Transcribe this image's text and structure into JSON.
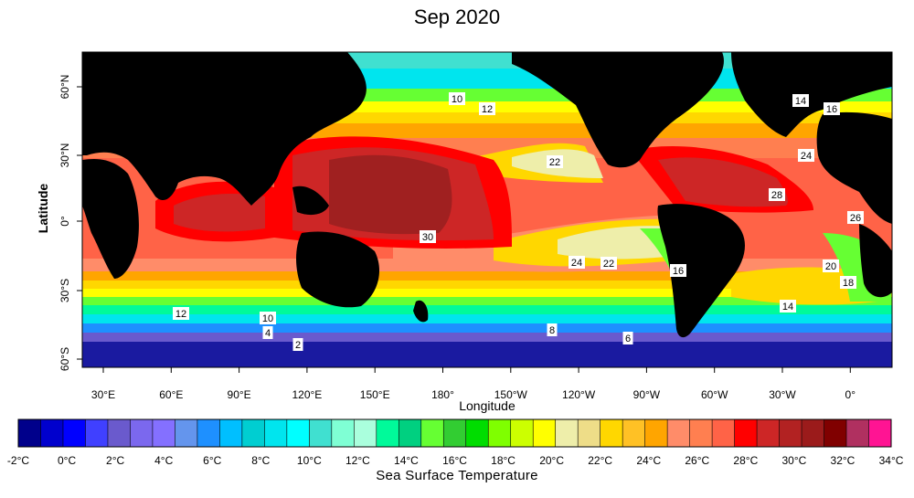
{
  "title": "Sep 2020",
  "map": {
    "y_axis_title": "Latitude",
    "x_axis_title": "Longitude",
    "lat_ticks": [
      "60°N",
      "30°N",
      "0°",
      "30°S",
      "60°S"
    ],
    "lon_ticks": [
      "30°E",
      "60°E",
      "90°E",
      "120°E",
      "150°E",
      "180°",
      "150°W",
      "120°W",
      "90°W",
      "60°W",
      "30°W",
      "0°"
    ],
    "contour_labels": [
      "10",
      "12",
      "14",
      "16",
      "24",
      "22",
      "28",
      "26",
      "30",
      "24",
      "22",
      "16",
      "20",
      "18",
      "14",
      "12",
      "10",
      "4",
      "2",
      "8",
      "6"
    ],
    "colors": {
      "land": "#000000",
      "warm_core": "#a02020",
      "hot": "#ff1a1a",
      "coral": "#ff7a5c",
      "polar": "#1a1aa0"
    }
  },
  "colorbar": {
    "title": "Sea Surface Temperature",
    "tick_labels": [
      "-2°C",
      "0°C",
      "2°C",
      "4°C",
      "6°C",
      "8°C",
      "10°C",
      "12°C",
      "14°C",
      "16°C",
      "18°C",
      "20°C",
      "22°C",
      "24°C",
      "26°C",
      "28°C",
      "30°C",
      "32°C",
      "34°C"
    ],
    "colors": [
      "#00008b",
      "#0000cd",
      "#0000ff",
      "#4040ff",
      "#6a5acd",
      "#7b68ee",
      "#8470ff",
      "#6495ed",
      "#1e90ff",
      "#00bfff",
      "#00ced1",
      "#00e5ee",
      "#00ffff",
      "#40e0d0",
      "#7fffd4",
      "#aaffdd",
      "#00fa9a",
      "#00d080",
      "#66ff33",
      "#32cd32",
      "#00dd00",
      "#7fff00",
      "#ccff00",
      "#ffff00",
      "#eeeeaa",
      "#eedd88",
      "#ffd700",
      "#ffc125",
      "#ffa500",
      "#ff8c69",
      "#ff7f50",
      "#ff6347",
      "#ff0000",
      "#cd2626",
      "#b22222",
      "#9b1b1b",
      "#800000",
      "#b03060",
      "#ff1493"
    ]
  }
}
